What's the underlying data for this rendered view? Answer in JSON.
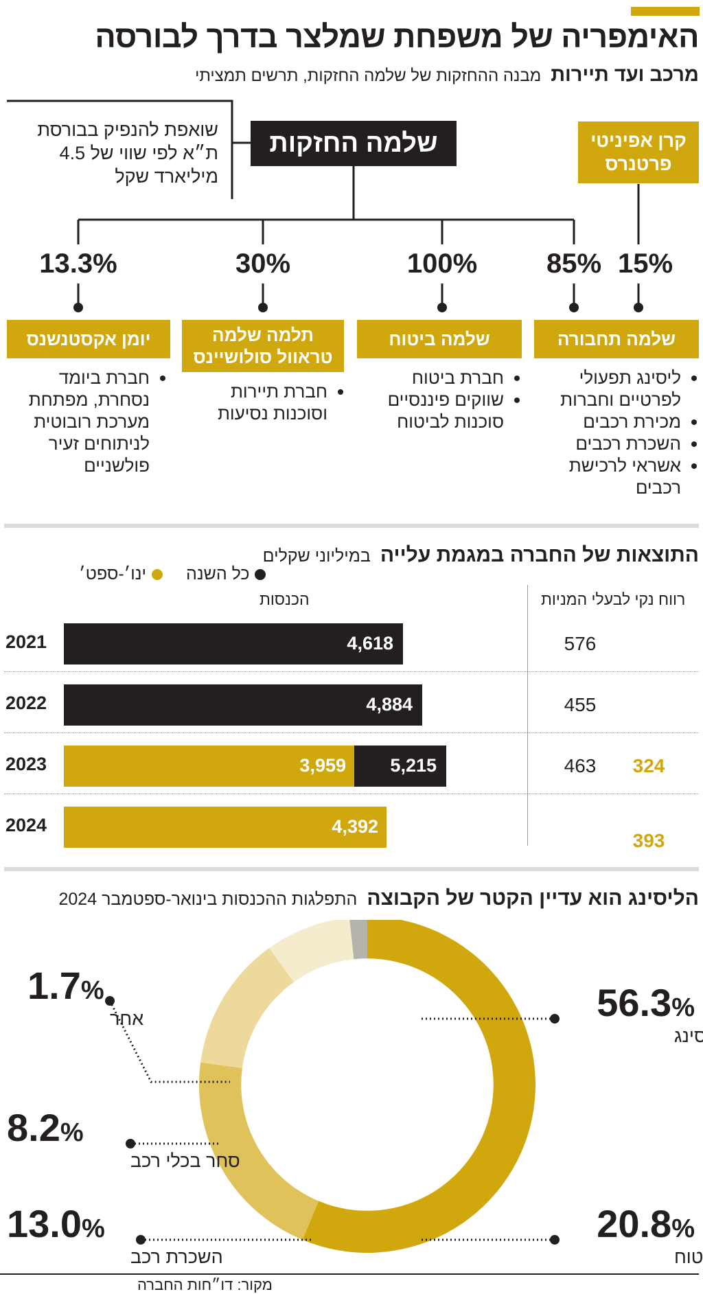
{
  "header": {
    "title": "האימפריה של משפחת שמלצר בדרך לבורסה",
    "kicker": "מרכב ועד תיירות",
    "subtitle": "מבנה ההחזקות של שלמה החזקות, תרשים תמציתי"
  },
  "structure": {
    "parent": "שלמה החזקות",
    "note": "שואפת להנפיק בבורסת ת״א לפי שווי של 4.5 מיליארד שקל",
    "fund": "קרן אפיניטי פרטנרס",
    "fund_pct": "15%",
    "subsidiaries": [
      {
        "name": "שלמה תחבורה",
        "pct": "85%",
        "items": [
          "ליסינג תפעולי לפרטיים וחברות",
          "מכירת רכבים",
          "השכרת רכבים",
          "אשראי לרכישת רכבים"
        ]
      },
      {
        "name": "שלמה ביטוח",
        "pct": "100%",
        "items": [
          "חברת ביטוח",
          "שווקים פיננסיים סוכנות לביטוח"
        ]
      },
      {
        "name": "תלמה שלמה טראוול סולושיינס",
        "pct": "30%",
        "items": [
          "חברת תיירות וסוכנות נסיעות"
        ]
      },
      {
        "name": "יומן אקסטנשנס",
        "pct": "13.3%",
        "items": [
          "חברת ביומד נסחרת, מפתחת מערכת רובוטית לניתוחים זעיר פולשניים"
        ]
      }
    ]
  },
  "results": {
    "title": "התוצאות של החברה במגמת עלייה",
    "unit": "במיליוני שקלים",
    "legend_full": "כל השנה",
    "legend_partial": "ינו׳-ספט׳",
    "col_revenue": "הכנסות",
    "col_profit": "רווח נקי לבעלי המניות",
    "colors": {
      "full": "#231f20",
      "partial": "#d0a80d"
    }
  },
  "donut": {
    "title": "הליסינג הוא עדיין הקטר של הקבוצה",
    "subtitle": "התפלגות ההכנסות בינואר-ספטמבר 2024"
  },
  "source": "מקור: דו״חות החברה",
  "chart_data": [
    {
      "type": "bar",
      "title": "התוצאות של החברה במגמת עלייה",
      "unit": "במיליוני שקלים",
      "categories": [
        "2021",
        "2022",
        "2023",
        "2024"
      ],
      "series": [
        {
          "name": "כל השנה",
          "color": "#231f20",
          "values": [
            4618,
            4884,
            5215,
            null
          ],
          "labels": [
            "4,618",
            "4,884",
            "5,215",
            ""
          ]
        },
        {
          "name": "ינו׳-ספט׳",
          "color": "#d0a80d",
          "values": [
            null,
            null,
            3959,
            4392
          ],
          "labels": [
            "",
            "",
            "3,959",
            "4,392"
          ]
        }
      ],
      "profit": {
        "name": "רווח נקי לבעלי המניות",
        "full_year": [
          "576",
          "455",
          "463",
          ""
        ],
        "jan_sep": [
          "",
          "",
          "324",
          "393"
        ]
      },
      "xlim": [
        0,
        6000
      ],
      "grid": true
    },
    {
      "type": "pie",
      "title": "הליסינג הוא עדיין הקטר של הקבוצה",
      "subtitle": "התפלגות ההכנסות בינואר-ספטמבר 2024",
      "slices": [
        {
          "label": "ליסינג",
          "value": 56.3,
          "display": "56.3",
          "color": "#d0a80d"
        },
        {
          "label": "ביטוח",
          "value": 20.8,
          "display": "20.8",
          "color": "#e0c25a"
        },
        {
          "label": "השכרת רכב",
          "value": 13.0,
          "display": "13.0",
          "color": "#ecd99b"
        },
        {
          "label": "סחר בכלי רכב",
          "value": 8.2,
          "display": "8.2",
          "color": "#f5ebcd"
        },
        {
          "label": "אחר",
          "value": 1.7,
          "display": "1.7",
          "color": "#b3b3ab"
        }
      ],
      "unit": "%",
      "inner_radius_ratio": 0.75
    }
  ]
}
